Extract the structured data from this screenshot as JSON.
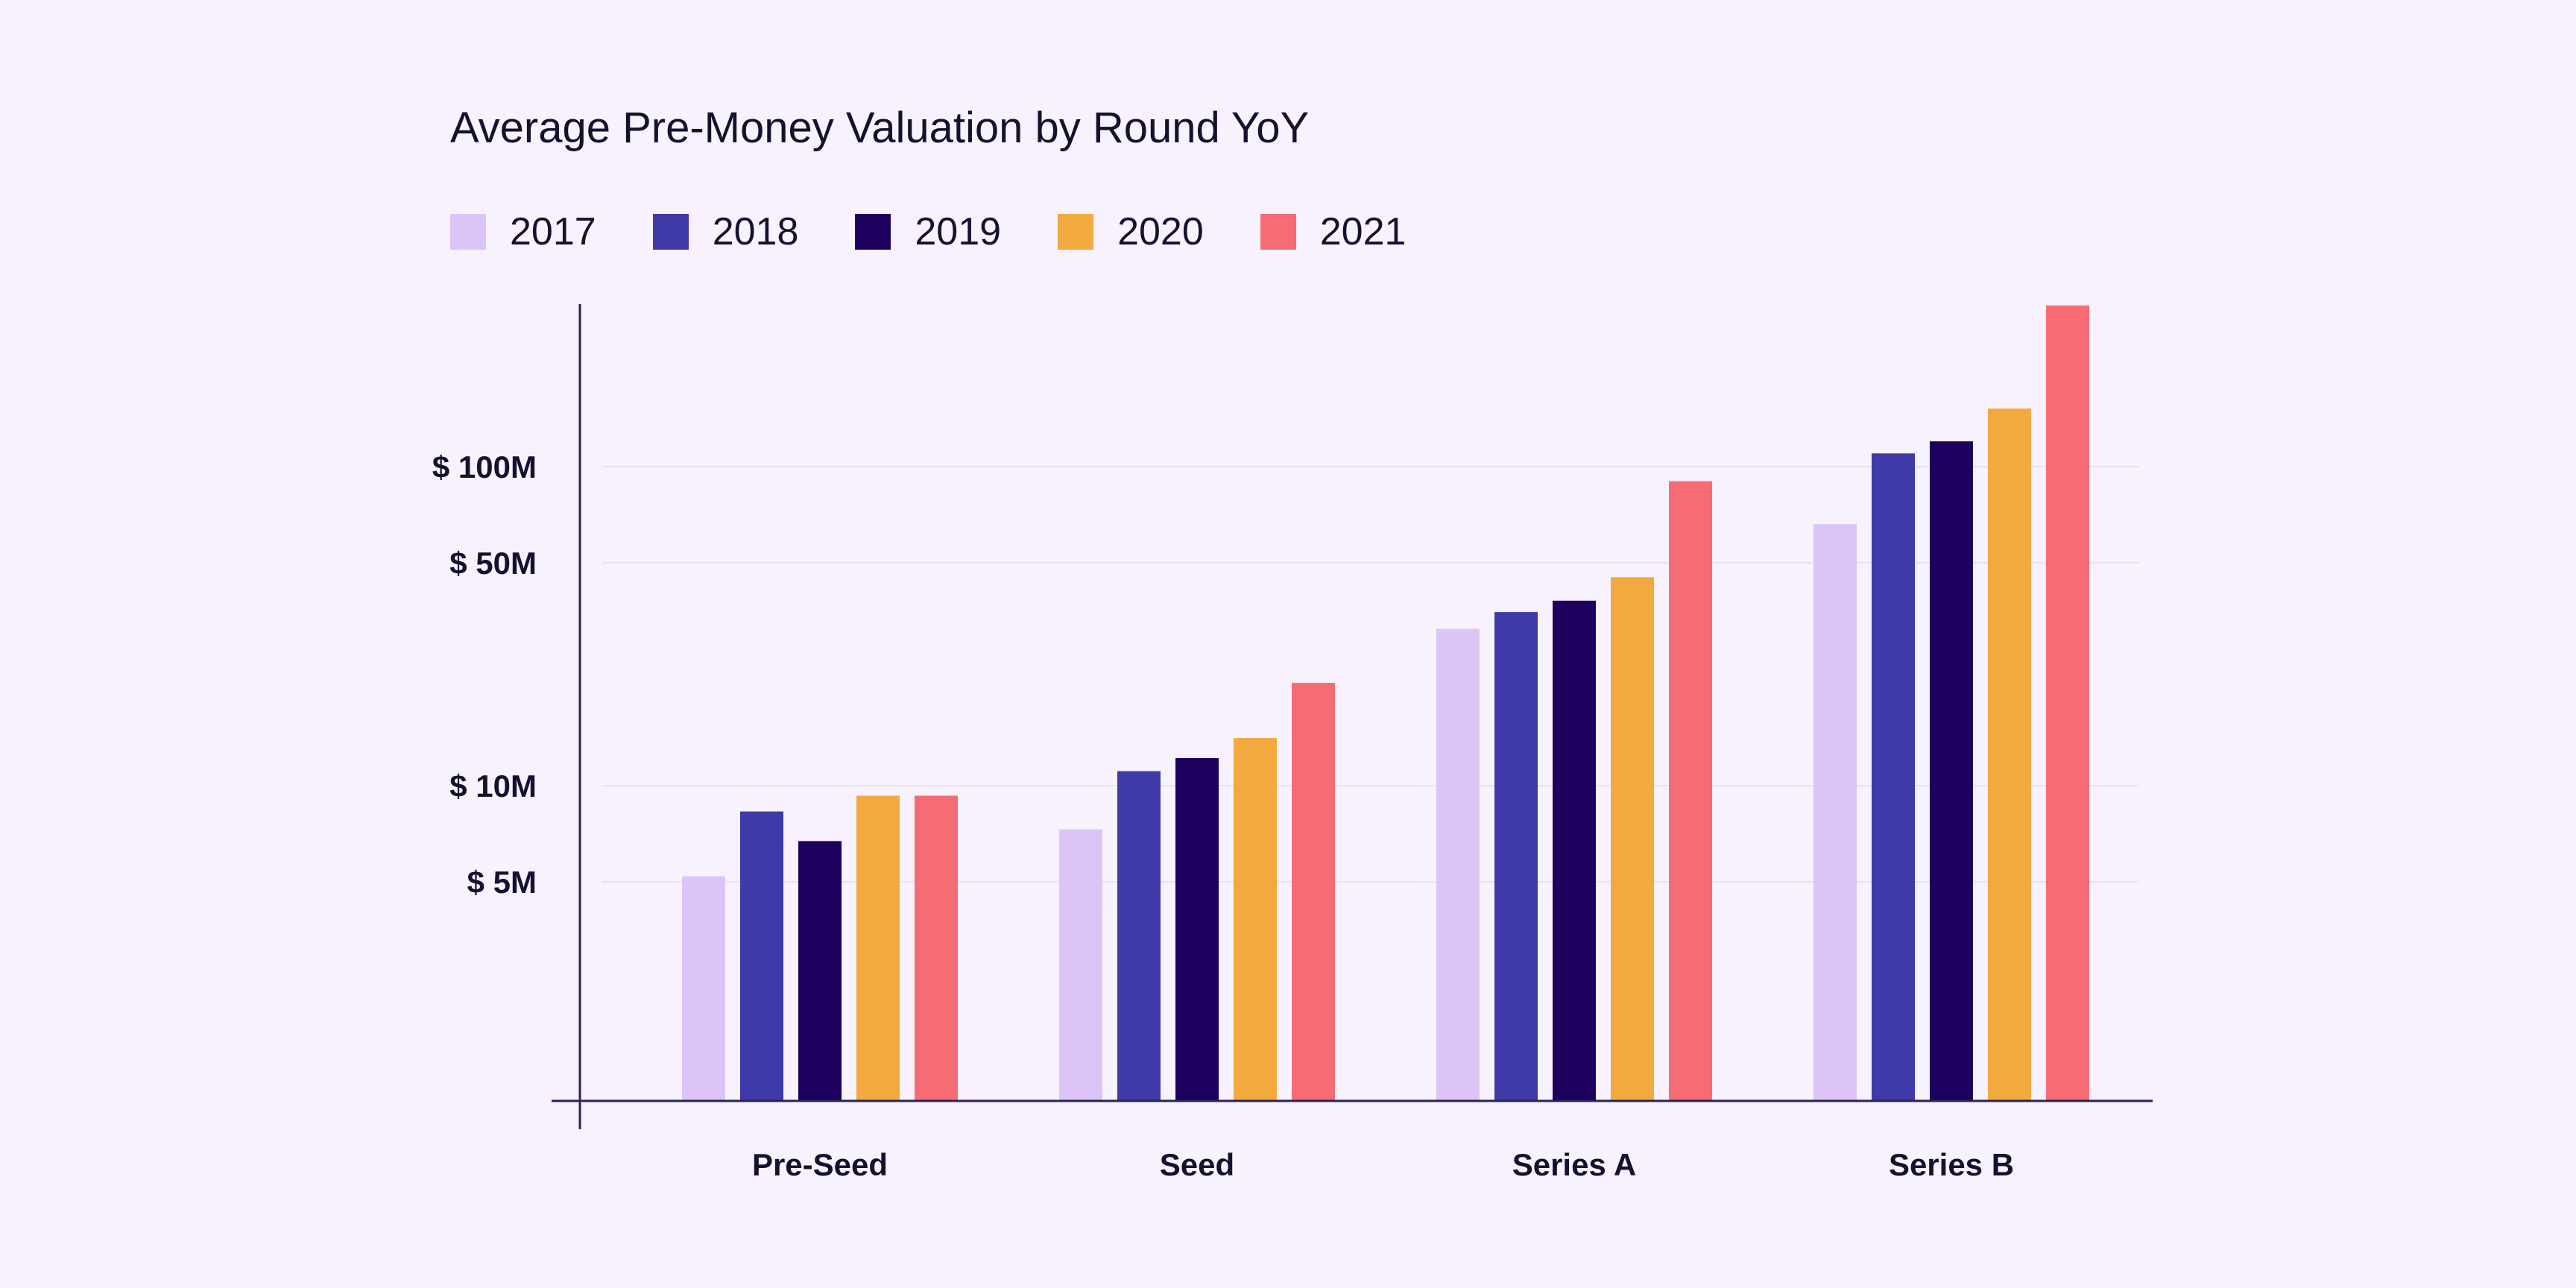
{
  "chart_data": {
    "type": "bar",
    "title": "Average Pre-Money Valuation by Round YoY",
    "xlabel": "",
    "ylabel": "",
    "scale": "log",
    "categories": [
      "Pre-Seed",
      "Seed",
      "Series A",
      "Series B"
    ],
    "series": [
      {
        "name": "2017",
        "color": "#dcc5f6",
        "values": [
          5.2,
          7.3,
          31,
          66
        ]
      },
      {
        "name": "2018",
        "color": "#4039a8",
        "values": [
          8.3,
          11.1,
          35,
          110
        ]
      },
      {
        "name": "2019",
        "color": "#1e005e",
        "values": [
          6.7,
          12.2,
          38,
          120
        ]
      },
      {
        "name": "2020",
        "color": "#f2a93d",
        "values": [
          9.3,
          14.1,
          45,
          152
        ]
      },
      {
        "name": "2021",
        "color": "#f76b74",
        "values": [
          9.3,
          21,
          90,
          320
        ]
      }
    ],
    "yticks": [
      {
        "value": 5,
        "label": "$ 5M"
      },
      {
        "value": 10,
        "label": "$ 10M"
      },
      {
        "value": 50,
        "label": "$ 50M"
      },
      {
        "value": 100,
        "label": "$ 100M"
      }
    ],
    "grid": true,
    "legend_position": "top-left"
  },
  "colors": {
    "background": "#f7f2fd",
    "axis": "#2a2450",
    "grid": "#e6e0ef",
    "text": "#15122e"
  }
}
